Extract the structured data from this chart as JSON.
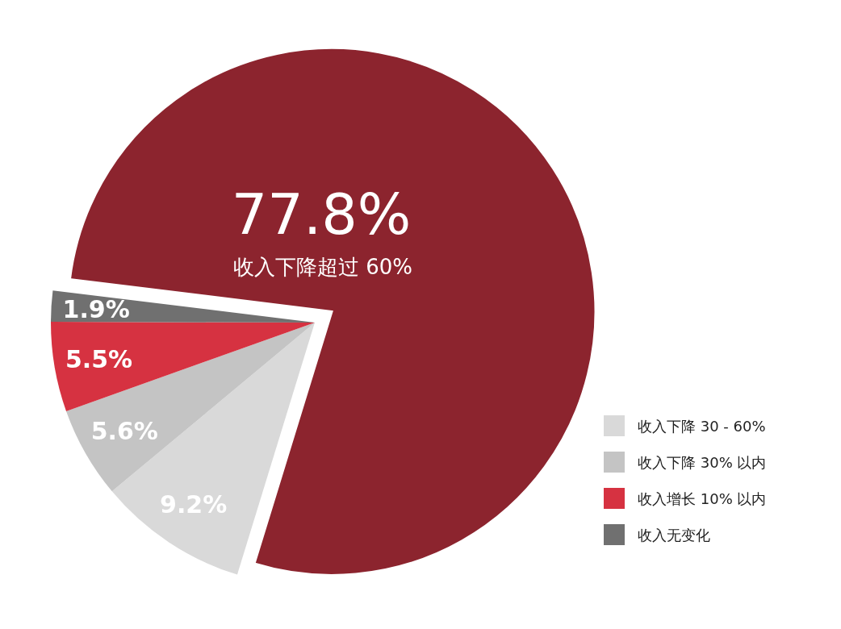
{
  "chart_data": {
    "type": "pie",
    "categories": [
      "收入下降超过 60%",
      "收入下降 30 - 60%",
      "收入下降 30% 以内",
      "收入增长 10% 以内",
      "收入无变化"
    ],
    "values": [
      77.8,
      9.2,
      5.6,
      5.5,
      1.9
    ],
    "colors": [
      "#8c242e",
      "#d9d9d9",
      "#c4c4c4",
      "#d63241",
      "#707070"
    ],
    "value_labels": [
      "77.8%",
      "9.2%",
      "5.6%",
      "5.5%",
      "1.9%"
    ],
    "legend": "bottom right"
  }
}
